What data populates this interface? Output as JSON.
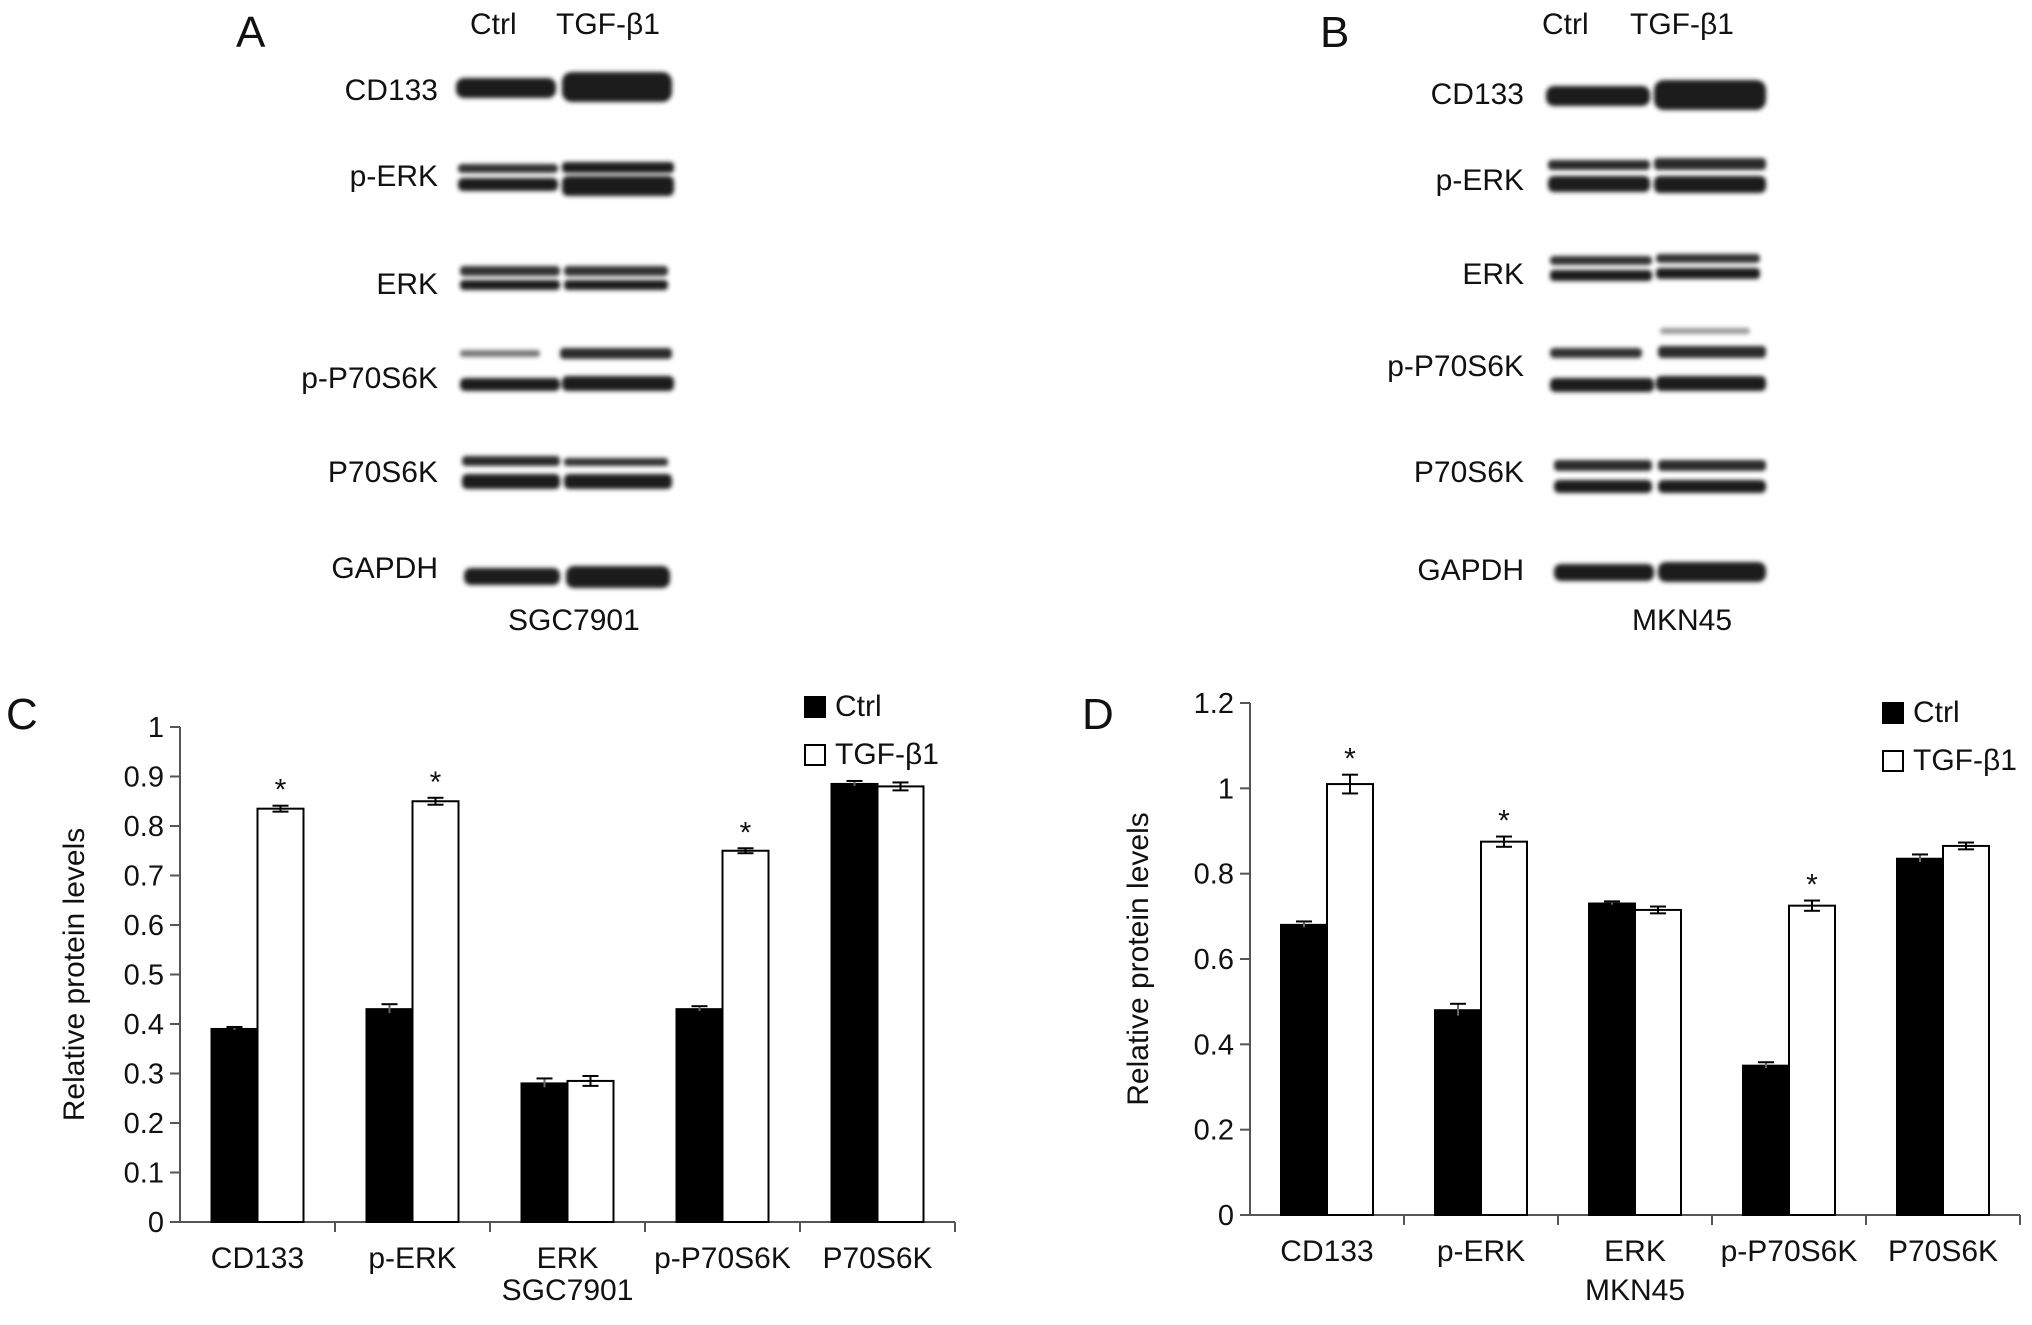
{
  "blots": [
    {
      "letter": "A",
      "lane_headers": [
        "Ctrl",
        "TGF-β1"
      ],
      "cell_line": "SGC7901",
      "proteins": [
        "CD133",
        "p-ERK",
        "ERK",
        "p-P70S6K",
        "P70S6K",
        "GAPDH"
      ]
    },
    {
      "letter": "B",
      "lane_headers": [
        "Ctrl",
        "TGF-β1"
      ],
      "cell_line": "MKN45",
      "proteins": [
        "CD133",
        "p-ERK",
        "ERK",
        "p-P70S6K",
        "P70S6K",
        "GAPDH"
      ]
    }
  ],
  "chart_data": [
    {
      "panel": "C",
      "type": "bar",
      "categories": [
        "CD133",
        "p-ERK",
        "ERK",
        "p-P70S6K",
        "P70S6K"
      ],
      "xlabel": "SGC7901",
      "ylabel": "Relative protein levels",
      "ylim": [
        0,
        1
      ],
      "yticks": [
        "0",
        "0.1",
        "0.2",
        "0.3",
        "0.4",
        "0.5",
        "0.6",
        "0.7",
        "0.8",
        "0.9",
        "1"
      ],
      "series": [
        {
          "name": "Ctrl",
          "color": "#000000",
          "values": [
            0.39,
            0.43,
            0.28,
            0.43,
            0.885
          ],
          "errors": [
            0.004,
            0.01,
            0.01,
            0.006,
            0.006
          ]
        },
        {
          "name": "TGF-β1",
          "color": "#ffffff",
          "values": [
            0.835,
            0.85,
            0.285,
            0.75,
            0.88
          ],
          "errors": [
            0.006,
            0.007,
            0.01,
            0.005,
            0.008
          ]
        }
      ],
      "significance": [
        "*",
        "*",
        "",
        "*",
        ""
      ],
      "legend": "top-right"
    },
    {
      "panel": "D",
      "type": "bar",
      "categories": [
        "CD133",
        "p-ERK",
        "ERK",
        "p-P70S6K",
        "P70S6K"
      ],
      "xlabel": "MKN45",
      "ylabel": "Relative protein levels",
      "ylim": [
        0,
        1.2
      ],
      "yticks": [
        "0",
        "0.2",
        "0.4",
        "0.6",
        "0.8",
        "1",
        "1.2"
      ],
      "series": [
        {
          "name": "Ctrl",
          "color": "#000000",
          "values": [
            0.68,
            0.48,
            0.73,
            0.35,
            0.835
          ],
          "errors": [
            0.008,
            0.015,
            0.005,
            0.008,
            0.01
          ]
        },
        {
          "name": "TGF-β1",
          "color": "#ffffff",
          "values": [
            1.01,
            0.875,
            0.715,
            0.725,
            0.865
          ],
          "errors": [
            0.022,
            0.012,
            0.008,
            0.012,
            0.008
          ]
        }
      ],
      "significance": [
        "*",
        "*",
        "",
        "*",
        ""
      ],
      "legend": "top-right"
    }
  ]
}
